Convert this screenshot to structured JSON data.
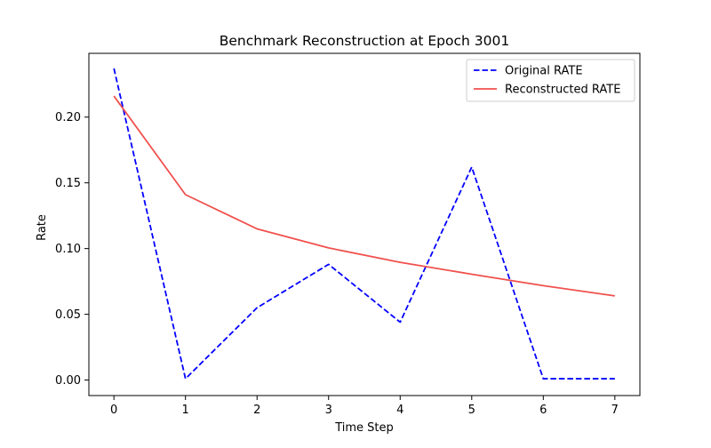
{
  "chart_data": {
    "type": "line",
    "title": "Benchmark Reconstruction at Epoch 3001",
    "xlabel": "Time Step",
    "ylabel": "Rate",
    "x": [
      0,
      1,
      2,
      3,
      4,
      5,
      6,
      7
    ],
    "xlim": [
      -0.35,
      7.35
    ],
    "ylim": [
      -0.0118,
      0.2485
    ],
    "xticks": [
      0,
      1,
      2,
      3,
      4,
      5,
      6,
      7
    ],
    "yticks": [
      0.0,
      0.05,
      0.1,
      0.15,
      0.2
    ],
    "ytick_labels": [
      "0.00",
      "0.05",
      "0.10",
      "0.15",
      "0.20"
    ],
    "grid": false,
    "legend_position": "top-right",
    "series": [
      {
        "name": "Original RATE",
        "values": [
          0.237,
          0.001,
          0.055,
          0.088,
          0.044,
          0.162,
          0.001,
          0.001
        ],
        "color": "#0000ff",
        "style": "dashed"
      },
      {
        "name": "Reconstructed RATE",
        "values": [
          0.216,
          0.141,
          0.115,
          0.1005,
          0.0895,
          0.0805,
          0.0718,
          0.064
        ],
        "color": "#f0514d",
        "style": "solid"
      }
    ]
  }
}
